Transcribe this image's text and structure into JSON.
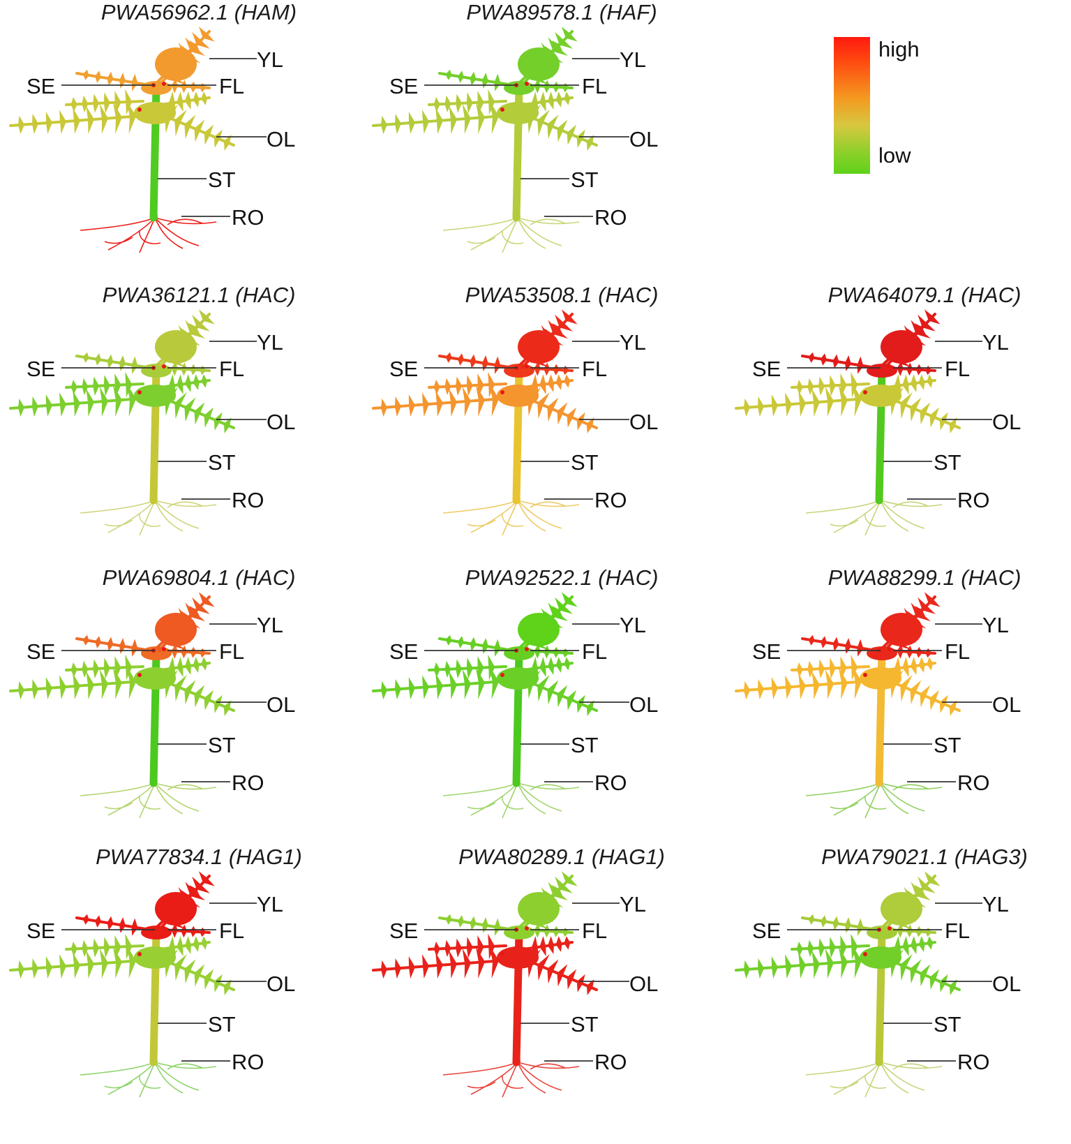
{
  "figure": {
    "legend": {
      "high_label": "high",
      "low_label": "low",
      "high_color": "#ff1a10",
      "low_color": "#5fd21a"
    },
    "tissue_labels": {
      "YL": "YL",
      "FL": "FL",
      "SE": "SE",
      "OL": "OL",
      "ST": "ST",
      "RO": "RO"
    },
    "panels": [
      {
        "title": "PWA56962.1 (HAM)",
        "colors": {
          "YL": "#f39a2e",
          "FL": "#f0a030",
          "OL": "#c9c838",
          "ST": "#4fcb22",
          "RO": "#ec1e18"
        }
      },
      {
        "title": "PWA89578.1 (HAF)",
        "colors": {
          "YL": "#74cf2a",
          "FL": "#74cf2a",
          "OL": "#b3cc3a",
          "ST": "#b3cc3a",
          "RO": "#c8d676"
        }
      },
      {
        "title": "PWA36121.1 (HAC)",
        "colors": {
          "YL": "#b9c93c",
          "FL": "#a8cc3a",
          "OL": "#7ccf2e",
          "ST": "#c5c737",
          "RO": "#cfd57a"
        }
      },
      {
        "title": "PWA53508.1 (HAC)",
        "colors": {
          "YL": "#ec2a1a",
          "FL": "#ee3a1a",
          "OL": "#f4952e",
          "ST": "#e9c430",
          "RO": "#eccb64"
        }
      },
      {
        "title": "PWA64079.1 (HAC)",
        "colors": {
          "YL": "#e11c1a",
          "FL": "#e11c1a",
          "OL": "#c9c838",
          "ST": "#52c91f",
          "RO": "#c8d479"
        }
      },
      {
        "title": "PWA69804.1 (HAC)",
        "colors": {
          "YL": "#ee5a22",
          "FL": "#ef6a24",
          "OL": "#8ecf30",
          "ST": "#4cc91f",
          "RO": "#b4d46f"
        }
      },
      {
        "title": "PWA92522.1 (HAC)",
        "colors": {
          "YL": "#5fd21a",
          "FL": "#66cf22",
          "OL": "#6ad028",
          "ST": "#4cc91f",
          "RO": "#9fd56a"
        }
      },
      {
        "title": "PWA88299.1 (HAC)",
        "colors": {
          "YL": "#e9281b",
          "FL": "#e9281b",
          "OL": "#f5b730",
          "ST": "#f3bb34",
          "RO": "#8fd060"
        }
      },
      {
        "title": "PWA77834.1 (HAG1)",
        "colors": {
          "YL": "#e91c16",
          "FL": "#e91c16",
          "OL": "#98cf33",
          "ST": "#c1c838",
          "RO": "#8ed46a"
        }
      },
      {
        "title": "PWA80289.1 (HAG1)",
        "colors": {
          "YL": "#8ecf30",
          "FL": "#8ecf30",
          "OL": "#e8221a",
          "ST": "#e8221a",
          "RO": "#e8433a"
        }
      },
      {
        "title": "PWA79021.1 (HAG3)",
        "colors": {
          "YL": "#afcc3a",
          "FL": "#a5cb37",
          "OL": "#72cf2a",
          "ST": "#b8c838",
          "RO": "#c6d479"
        }
      }
    ]
  }
}
